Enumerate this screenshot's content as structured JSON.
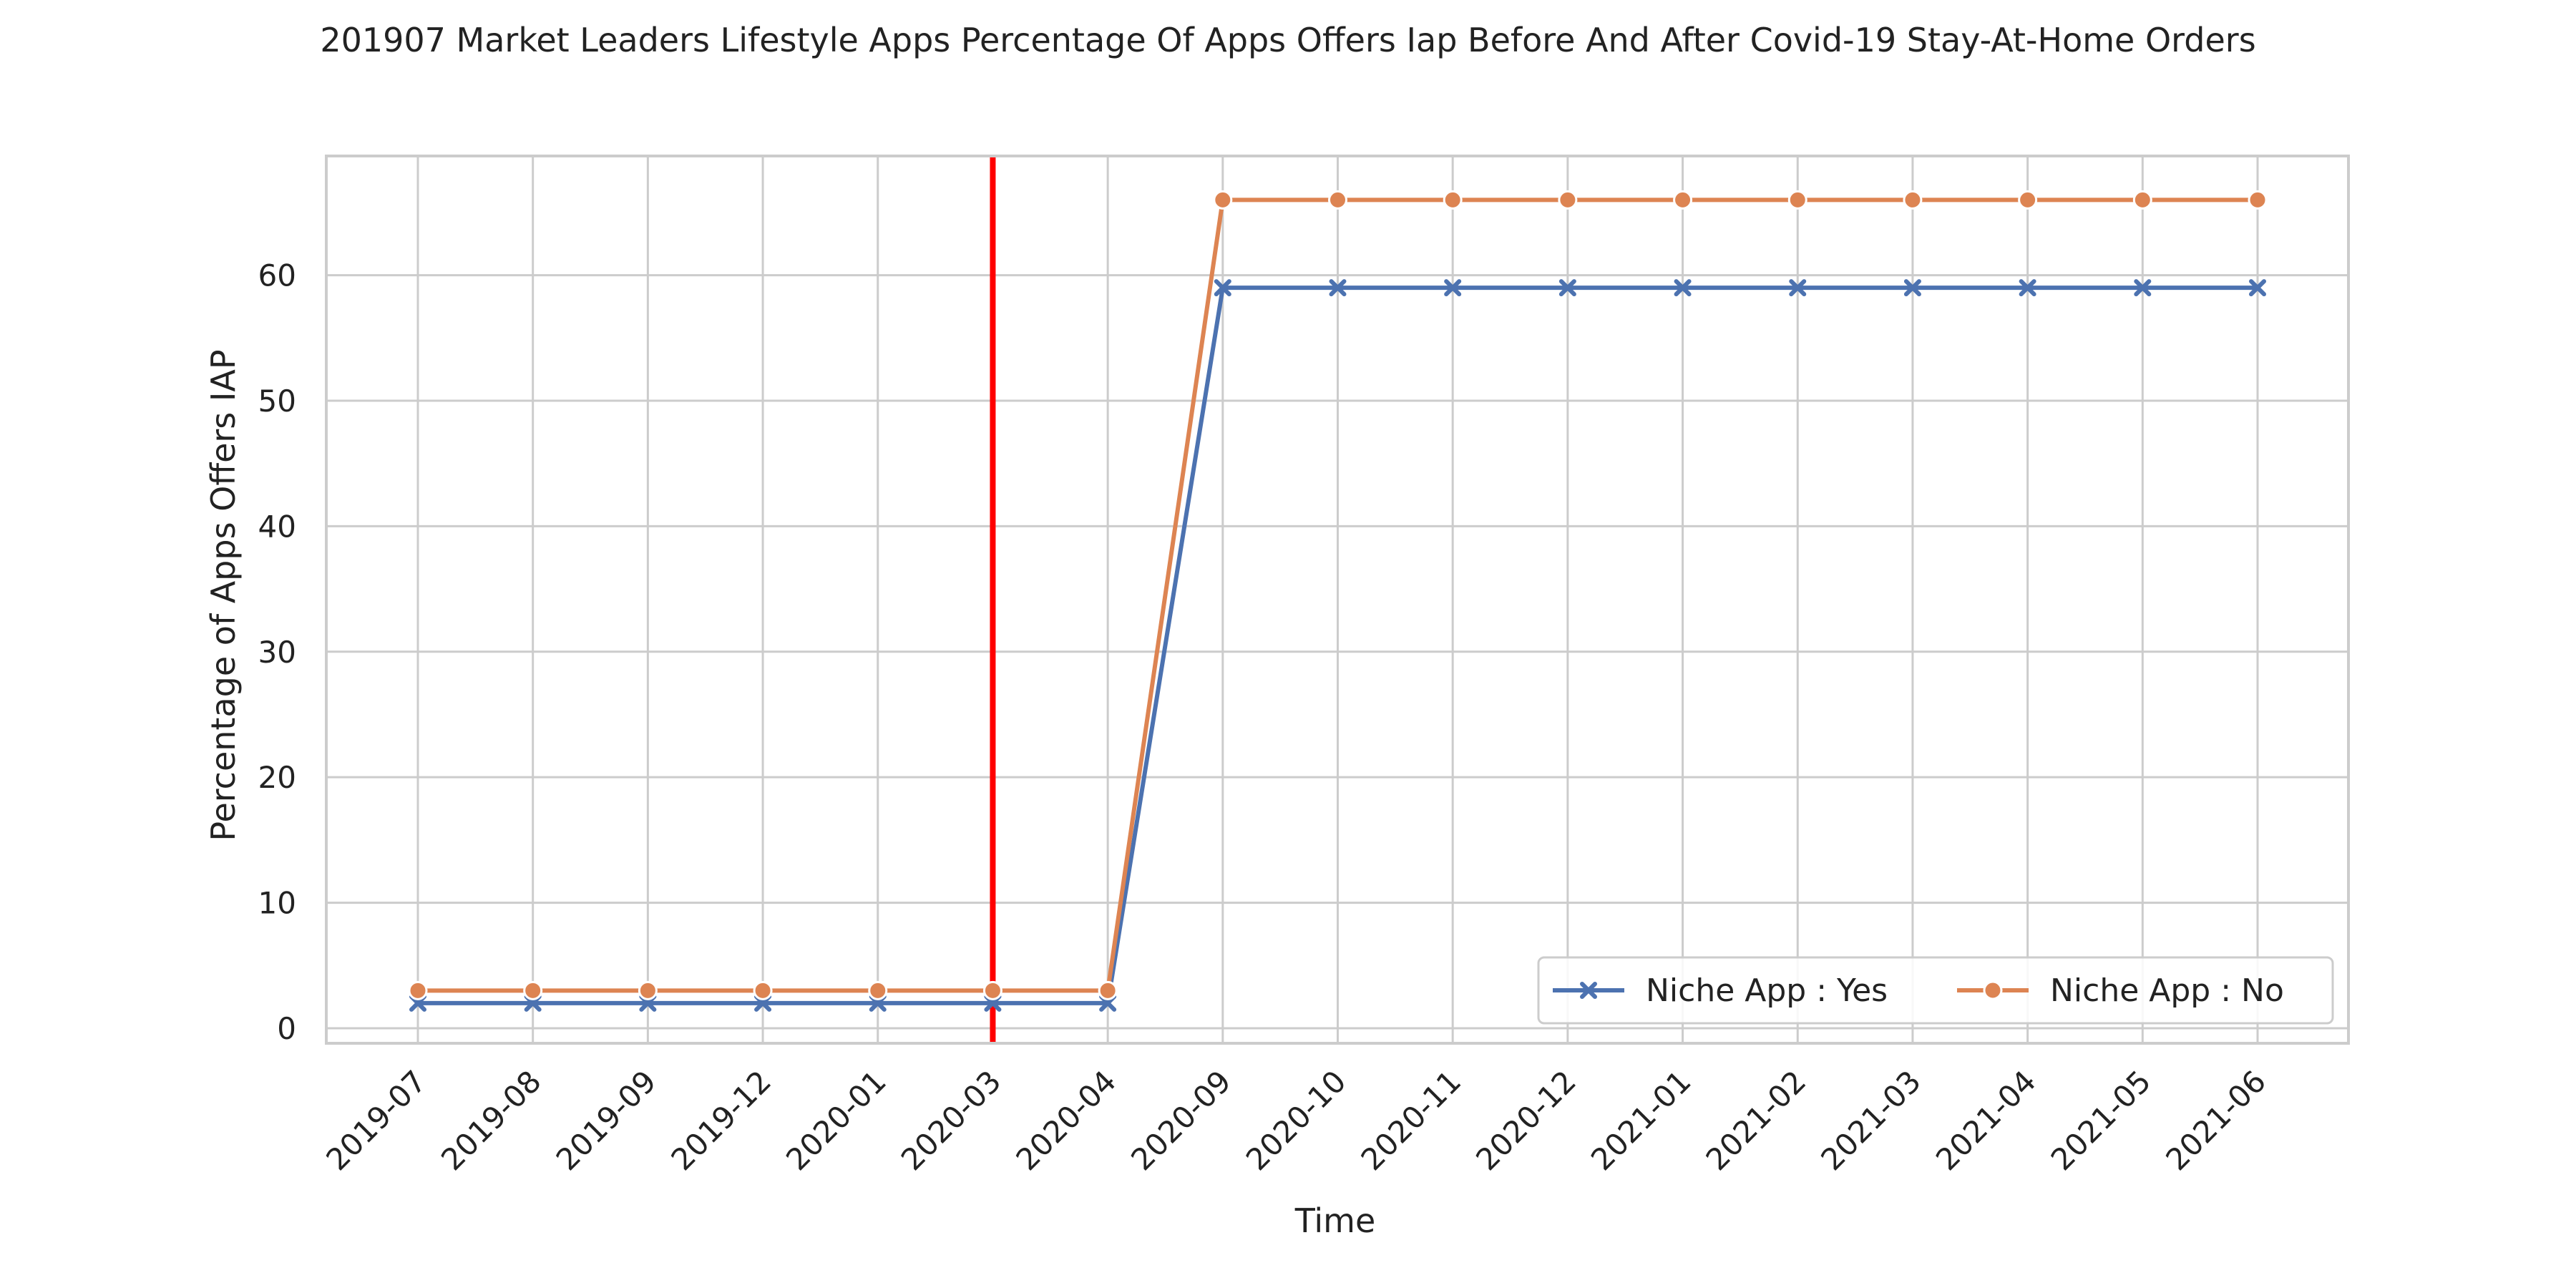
{
  "chart_data": {
    "type": "line",
    "title": "201907 Market Leaders Lifestyle Apps Percentage Of Apps Offers Iap Before And After Covid-19 Stay-At-Home Orders",
    "xlabel": "Time",
    "ylabel": "Percentage of Apps Offers IAP",
    "categories": [
      "2019-07",
      "2019-08",
      "2019-09",
      "2019-12",
      "2020-01",
      "2020-03",
      "2020-04",
      "2020-09",
      "2020-10",
      "2020-11",
      "2020-12",
      "2021-01",
      "2021-02",
      "2021-03",
      "2021-04",
      "2021-05",
      "2021-06"
    ],
    "yticks": [
      0,
      10,
      20,
      30,
      40,
      50,
      60
    ],
    "ylim": [
      -1.2,
      69.5
    ],
    "grid": true,
    "legend_position": "bottom-right",
    "reference_line": {
      "x": "2020-03",
      "color": "#ff0000"
    },
    "series": [
      {
        "name": "Niche App : Yes",
        "color": "#4c72b0",
        "marker": "x",
        "values": [
          2,
          2,
          2,
          2,
          2,
          2,
          2,
          59,
          59,
          59,
          59,
          59,
          59,
          59,
          59,
          59,
          59
        ]
      },
      {
        "name": "Niche App : No",
        "color": "#dd8452",
        "marker": "circle",
        "values": [
          3,
          3,
          3,
          3,
          3,
          3,
          3,
          66,
          66,
          66,
          66,
          66,
          66,
          66,
          66,
          66,
          66
        ]
      }
    ]
  }
}
